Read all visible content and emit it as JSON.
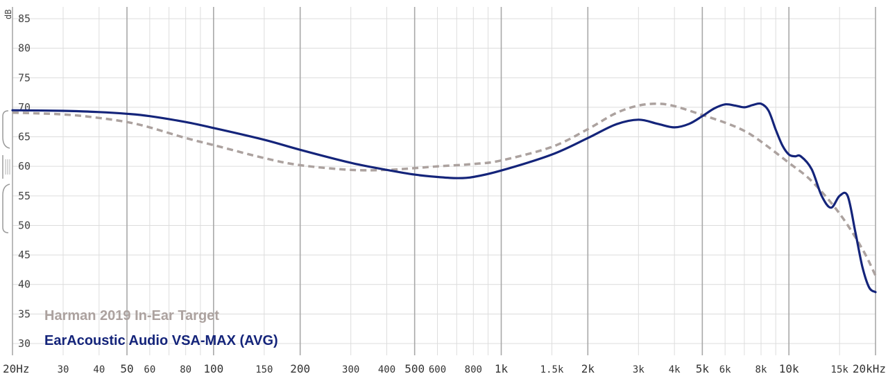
{
  "chart_data": {
    "type": "line",
    "title": "",
    "xlabel": "",
    "ylabel": "dB",
    "x_scale": "log",
    "xlim": [
      20,
      20000
    ],
    "ylim": [
      28,
      87
    ],
    "y_ticks": [
      30,
      35,
      40,
      45,
      50,
      55,
      60,
      65,
      70,
      75,
      80,
      85
    ],
    "x_ticks": [
      {
        "value": 20,
        "label": "20Hz"
      },
      {
        "value": 30,
        "label": "30"
      },
      {
        "value": 40,
        "label": "40"
      },
      {
        "value": 50,
        "label": "50"
      },
      {
        "value": 60,
        "label": "60"
      },
      {
        "value": 80,
        "label": "80"
      },
      {
        "value": 100,
        "label": "100"
      },
      {
        "value": 150,
        "label": "150"
      },
      {
        "value": 200,
        "label": "200"
      },
      {
        "value": 300,
        "label": "300"
      },
      {
        "value": 400,
        "label": "400"
      },
      {
        "value": 500,
        "label": "500"
      },
      {
        "value": 600,
        "label": "600"
      },
      {
        "value": 800,
        "label": "800"
      },
      {
        "value": 1000,
        "label": "1k"
      },
      {
        "value": 1500,
        "label": "1.5k"
      },
      {
        "value": 2000,
        "label": "2k"
      },
      {
        "value": 3000,
        "label": "3k"
      },
      {
        "value": 4000,
        "label": "4k"
      },
      {
        "value": 5000,
        "label": "5k"
      },
      {
        "value": 6000,
        "label": "6k"
      },
      {
        "value": 8000,
        "label": "8k"
      },
      {
        "value": 10000,
        "label": "10k"
      },
      {
        "value": 15000,
        "label": "15k"
      },
      {
        "value": 20000,
        "label": "20kHz"
      }
    ],
    "major_x": [
      20,
      50,
      100,
      200,
      500,
      1000,
      2000,
      5000,
      10000,
      20000
    ],
    "series": [
      {
        "name": "Harman 2019 In-Ear Target",
        "color": "#aca29f",
        "dash": true,
        "x": [
          20,
          30,
          40,
          50,
          60,
          80,
          100,
          150,
          200,
          300,
          400,
          500,
          600,
          800,
          1000,
          1500,
          2000,
          2500,
          3000,
          3500,
          4000,
          5000,
          6000,
          7000,
          8000,
          10000,
          12000,
          15000,
          18000,
          20000
        ],
        "y": [
          69.1,
          68.8,
          68.2,
          67.5,
          66.6,
          64.8,
          63.6,
          61.4,
          60.2,
          59.4,
          59.4,
          59.7,
          60.0,
          60.4,
          61.0,
          63.3,
          66.3,
          69.0,
          70.3,
          70.6,
          70.2,
          68.7,
          67.4,
          66.0,
          64.2,
          60.6,
          57.5,
          52.0,
          46.0,
          41.5
        ]
      },
      {
        "name": "EarAcoustic Audio VSA-MAX (AVG)",
        "color": "#14247a",
        "dash": false,
        "x": [
          20,
          30,
          40,
          50,
          60,
          80,
          100,
          150,
          200,
          300,
          400,
          500,
          600,
          700,
          800,
          1000,
          1500,
          2000,
          2500,
          3000,
          3500,
          4000,
          4500,
          5000,
          5500,
          6000,
          6500,
          7000,
          7500,
          8000,
          8500,
          9000,
          9500,
          10000,
          10500,
          11000,
          12000,
          13000,
          14000,
          15000,
          16000,
          17000,
          18000,
          19000,
          20000
        ],
        "y": [
          69.5,
          69.4,
          69.2,
          68.9,
          68.5,
          67.5,
          66.5,
          64.5,
          62.8,
          60.6,
          59.4,
          58.6,
          58.2,
          58.0,
          58.2,
          59.3,
          62.0,
          64.8,
          67.1,
          67.9,
          67.2,
          66.6,
          67.2,
          68.5,
          69.8,
          70.5,
          70.3,
          70.0,
          70.4,
          70.6,
          69.4,
          66.2,
          63.5,
          62.0,
          61.7,
          61.7,
          59.5,
          55.0,
          53.0,
          55.0,
          55.0,
          49.0,
          43.0,
          39.5,
          38.7
        ]
      }
    ],
    "legend": [
      {
        "label": "Harman 2019 In-Ear Target",
        "color": "#aca29f"
      },
      {
        "label": "EarAcoustic Audio VSA-MAX (AVG)",
        "color": "#14247a"
      }
    ],
    "legend_position": "bottom-left",
    "grid": true
  }
}
